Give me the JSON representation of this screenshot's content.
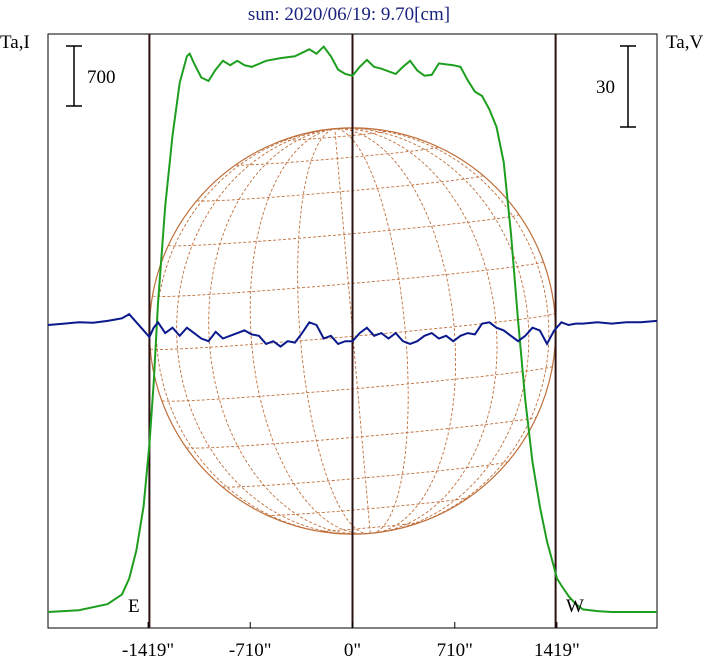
{
  "chart_data": {
    "type": "line",
    "title": "sun: 2020/06/19: 9.70[cm]",
    "left_axis_label": "Ta,I",
    "right_axis_label": "Ta,V",
    "left_scale_bar": "700",
    "right_scale_bar": "30",
    "xlim": [
      -2114,
      2114
    ],
    "x_ticks": [
      -1419,
      -710,
      0,
      710,
      1419
    ],
    "x_tick_labels": [
      "-1419\"",
      "-710\"",
      "0\"",
      "710\"",
      "1419\""
    ],
    "limb_labels": {
      "east": "E",
      "west": "W"
    },
    "limb_x": [
      -1410,
      1410
    ],
    "sun_radius": 1410,
    "disk_grid": {
      "b0_deg": 1.5,
      "p_deg": 5,
      "lat_step_deg": 15,
      "lon_step_deg": 15
    },
    "colors": {
      "intensity": "#1e9e1e",
      "polarization": "#0a1a8c",
      "disk": "#c0703c",
      "lines": "#2b1010",
      "title": "#1a237e"
    },
    "series": [
      {
        "key": "intensity",
        "x": [
          -2114,
          -1900,
          -1700,
          -1600,
          -1550,
          -1500,
          -1450,
          -1410,
          -1380,
          -1350,
          -1300,
          -1250,
          -1200,
          -1150,
          -1130,
          -1100,
          -1050,
          -1000,
          -950,
          -900,
          -850,
          -800,
          -750,
          -700,
          -600,
          -500,
          -400,
          -300,
          -250,
          -200,
          -150,
          -100,
          -50,
          0,
          50,
          100,
          150,
          200,
          250,
          300,
          350,
          400,
          450,
          500,
          550,
          600,
          700,
          750,
          800,
          850,
          900,
          950,
          1000,
          1050,
          1100,
          1150,
          1200,
          1250,
          1300,
          1350,
          1400,
          1420,
          1450,
          1500,
          1550,
          1600,
          1700,
          1800,
          1900,
          2000,
          2114
        ],
        "y": [
          0,
          20,
          90,
          200,
          380,
          700,
          1200,
          1900,
          2600,
          3500,
          4600,
          5400,
          6000,
          6300,
          6330,
          6220,
          6060,
          6020,
          6150,
          6250,
          6200,
          6250,
          6200,
          6180,
          6250,
          6280,
          6300,
          6380,
          6330,
          6410,
          6300,
          6150,
          6100,
          6080,
          6180,
          6260,
          6180,
          6160,
          6130,
          6100,
          6180,
          6250,
          6140,
          6080,
          6090,
          6220,
          6200,
          6180,
          6030,
          5900,
          5850,
          5700,
          5500,
          5100,
          4300,
          3300,
          2400,
          1700,
          1200,
          800,
          500,
          380,
          300,
          180,
          90,
          30,
          10,
          0,
          0,
          0,
          0
        ]
      },
      {
        "key": "polarization",
        "x": [
          -2114,
          -2000,
          -1900,
          -1800,
          -1700,
          -1650,
          -1600,
          -1550,
          -1500,
          -1450,
          -1410,
          -1380,
          -1350,
          -1300,
          -1250,
          -1200,
          -1150,
          -1100,
          -1050,
          -1000,
          -950,
          -900,
          -850,
          -800,
          -750,
          -700,
          -650,
          -600,
          -550,
          -500,
          -450,
          -400,
          -350,
          -300,
          -250,
          -200,
          -150,
          -100,
          -50,
          0,
          50,
          100,
          150,
          200,
          250,
          300,
          350,
          400,
          450,
          500,
          550,
          600,
          650,
          700,
          750,
          800,
          850,
          900,
          950,
          1000,
          1050,
          1100,
          1150,
          1200,
          1250,
          1300,
          1350,
          1400,
          1450,
          1500,
          1550,
          1600,
          1700,
          1800,
          1900,
          2000,
          2114
        ],
        "y": [
          0,
          0.5,
          1,
          0.8,
          1.5,
          2,
          2.5,
          4,
          1,
          -2,
          -4.5,
          -1,
          1,
          -3,
          -1,
          -4,
          -1,
          -3,
          -5,
          -6,
          -2.5,
          -5,
          -4,
          -3,
          -2,
          -3.5,
          -4,
          -7,
          -6,
          -8,
          -6,
          -6.5,
          -3,
          1,
          0,
          -5,
          -4,
          -7,
          -6,
          -6,
          -3,
          -1,
          -4,
          -3,
          -5,
          -3,
          -6,
          -7,
          -6,
          -4,
          -3,
          -5,
          -4,
          -6,
          -4,
          -3,
          -3.5,
          0.5,
          1,
          -1,
          -2,
          -4,
          -6,
          -4,
          -1,
          -2,
          -7,
          -2,
          1,
          0,
          0.5,
          0.5,
          1,
          0.5,
          1,
          1,
          1.5
        ]
      }
    ]
  }
}
